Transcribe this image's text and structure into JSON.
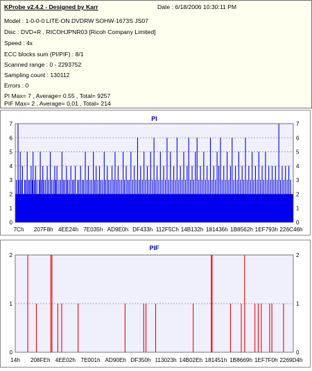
{
  "info": {
    "app_title": "KProbe v2.4.2 - Designed by Karr",
    "date": "Date : 6/18/2006 10:30:11 PM",
    "lines": [
      "Model : 1-0-0-0 LITE-ON DVDRW SOHW-1673S JS07",
      "Disc : DVD+R , RICOHJPNR03 [Ricoh Company Limited]",
      "Speed : 4x",
      "ECC blocks sum (PI/PIF) : 8/1",
      "Scanned range : 0 - 2293752",
      "Sampling count : 130112",
      "Errors : 0",
      "PI Max= 7 , Average= 0.55 , Total= 9257",
      "PIF Max= 2 , Average= 0.01 , Total= 214"
    ]
  },
  "colors": {
    "plot_bg": "#f0f0fc",
    "pi_bar": "#0000ee",
    "pif_bar": "#ee0000",
    "title": "#0000aa",
    "grid": "#8c8c8c"
  },
  "chart_data": [
    {
      "type": "bar",
      "title": "PI",
      "ylim": [
        0,
        7
      ],
      "y_ticks": [
        "0",
        "1",
        "2",
        "3",
        "4",
        "5",
        "6",
        "7"
      ],
      "x_tick_labels": [
        "7Ch",
        "207F8h",
        "4EE24h",
        "7E035h",
        "AD9E0h",
        "DF433h",
        "112F5Ch",
        "14B132h",
        "181436h",
        "1B8562h",
        "1EF793h",
        "226C46h"
      ],
      "baseline": 2,
      "points": [
        [
          0.4,
          3
        ],
        [
          1.0,
          7
        ],
        [
          1.3,
          3
        ],
        [
          1.8,
          5
        ],
        [
          2.2,
          3
        ],
        [
          2.6,
          4
        ],
        [
          3.4,
          3
        ],
        [
          3.8,
          3
        ],
        [
          4.3,
          5
        ],
        [
          4.8,
          3
        ],
        [
          5.2,
          3
        ],
        [
          5.7,
          4
        ],
        [
          6.1,
          3
        ],
        [
          6.4,
          5
        ],
        [
          6.9,
          3
        ],
        [
          7.3,
          4
        ],
        [
          7.8,
          3
        ],
        [
          8.6,
          3
        ],
        [
          9.0,
          5
        ],
        [
          9.4,
          3
        ],
        [
          9.9,
          4
        ],
        [
          10.3,
          3
        ],
        [
          10.9,
          3
        ],
        [
          11.5,
          4
        ],
        [
          12.0,
          3
        ],
        [
          12.6,
          5
        ],
        [
          13.1,
          3
        ],
        [
          13.7,
          3
        ],
        [
          14.2,
          4
        ],
        [
          14.6,
          3
        ],
        [
          15.0,
          4
        ],
        [
          15.7,
          3
        ],
        [
          16.3,
          3
        ],
        [
          16.8,
          5
        ],
        [
          17.3,
          3
        ],
        [
          17.8,
          3
        ],
        [
          18.4,
          4
        ],
        [
          18.8,
          3
        ],
        [
          19.4,
          3
        ],
        [
          20.0,
          4
        ],
        [
          20.6,
          3
        ],
        [
          21.1,
          3
        ],
        [
          21.6,
          4
        ],
        [
          22.4,
          3
        ],
        [
          22.9,
          3
        ],
        [
          23.5,
          4
        ],
        [
          24.1,
          3
        ],
        [
          24.6,
          3
        ],
        [
          25.2,
          5
        ],
        [
          25.8,
          3
        ],
        [
          26.3,
          4
        ],
        [
          26.9,
          3
        ],
        [
          27.5,
          3
        ],
        [
          28.1,
          5
        ],
        [
          28.6,
          3
        ],
        [
          29.1,
          4
        ],
        [
          29.7,
          3
        ],
        [
          30.3,
          4
        ],
        [
          30.8,
          3
        ],
        [
          31.4,
          3
        ],
        [
          32.0,
          5
        ],
        [
          32.5,
          3
        ],
        [
          33.1,
          4
        ],
        [
          33.6,
          3
        ],
        [
          34.2,
          3
        ],
        [
          34.8,
          4
        ],
        [
          35.4,
          3
        ],
        [
          35.9,
          5
        ],
        [
          36.5,
          3
        ],
        [
          37.0,
          4
        ],
        [
          37.6,
          3
        ],
        [
          38.2,
          3
        ],
        [
          38.8,
          5
        ],
        [
          39.3,
          3
        ],
        [
          39.9,
          4
        ],
        [
          40.5,
          3
        ],
        [
          41.0,
          3
        ],
        [
          41.6,
          5
        ],
        [
          42.2,
          3
        ],
        [
          42.8,
          4
        ],
        [
          43.4,
          3
        ],
        [
          44.0,
          6
        ],
        [
          44.6,
          3
        ],
        [
          45.1,
          4
        ],
        [
          45.7,
          3
        ],
        [
          46.3,
          5
        ],
        [
          46.9,
          3
        ],
        [
          47.5,
          4
        ],
        [
          48.1,
          3
        ],
        [
          48.7,
          5
        ],
        [
          49.3,
          3
        ],
        [
          49.9,
          6
        ],
        [
          50.4,
          3
        ],
        [
          51.0,
          4
        ],
        [
          51.6,
          3
        ],
        [
          52.2,
          5
        ],
        [
          52.8,
          3
        ],
        [
          53.4,
          4
        ],
        [
          54.0,
          3
        ],
        [
          54.6,
          6
        ],
        [
          55.2,
          3
        ],
        [
          55.8,
          5
        ],
        [
          56.4,
          3
        ],
        [
          57.0,
          4
        ],
        [
          57.6,
          3
        ],
        [
          58.2,
          6
        ],
        [
          58.8,
          3
        ],
        [
          59.4,
          4
        ],
        [
          60.0,
          3
        ],
        [
          60.6,
          5
        ],
        [
          61.2,
          3
        ],
        [
          61.8,
          4
        ],
        [
          62.4,
          6
        ],
        [
          63.0,
          3
        ],
        [
          63.6,
          4
        ],
        [
          64.2,
          3
        ],
        [
          64.8,
          5
        ],
        [
          65.4,
          6
        ],
        [
          66.0,
          3
        ],
        [
          66.6,
          4
        ],
        [
          67.2,
          3
        ],
        [
          67.8,
          5
        ],
        [
          68.4,
          3
        ],
        [
          69.0,
          4
        ],
        [
          69.6,
          3
        ],
        [
          70.2,
          6
        ],
        [
          70.8,
          3
        ],
        [
          71.4,
          4
        ],
        [
          72.0,
          3
        ],
        [
          72.6,
          5
        ],
        [
          73.2,
          4
        ],
        [
          73.8,
          6
        ],
        [
          74.4,
          3
        ],
        [
          75.0,
          4
        ],
        [
          75.6,
          3
        ],
        [
          76.2,
          5
        ],
        [
          76.8,
          3
        ],
        [
          77.4,
          4
        ],
        [
          78.0,
          6
        ],
        [
          78.6,
          3
        ],
        [
          79.2,
          4
        ],
        [
          79.8,
          3
        ],
        [
          80.4,
          5
        ],
        [
          81.0,
          3
        ],
        [
          81.6,
          4
        ],
        [
          82.2,
          3
        ],
        [
          82.8,
          6
        ],
        [
          83.4,
          3
        ],
        [
          84.0,
          4
        ],
        [
          84.6,
          3
        ],
        [
          85.2,
          5
        ],
        [
          85.8,
          3
        ],
        [
          86.4,
          4
        ],
        [
          87.0,
          3
        ],
        [
          87.6,
          5
        ],
        [
          88.2,
          3
        ],
        [
          88.8,
          4
        ],
        [
          89.4,
          3
        ],
        [
          90.0,
          5
        ],
        [
          90.6,
          3
        ],
        [
          91.2,
          4
        ],
        [
          91.8,
          3
        ],
        [
          92.4,
          4
        ],
        [
          93.0,
          3
        ],
        [
          93.6,
          4
        ],
        [
          94.2,
          3
        ],
        [
          94.8,
          7
        ],
        [
          95.4,
          3
        ],
        [
          96.0,
          4
        ],
        [
          96.6,
          3
        ],
        [
          97.2,
          4
        ],
        [
          97.8,
          3
        ],
        [
          98.4,
          4
        ],
        [
          99.0,
          3
        ]
      ]
    },
    {
      "type": "bar",
      "title": "PIF",
      "ylim": [
        0,
        2
      ],
      "y_ticks": [
        "0",
        "1",
        "2"
      ],
      "x_tick_labels": [
        "14h",
        "208FEh",
        "4EE02h",
        "7E001h",
        "AD90Eh",
        "DF350h",
        "113023h",
        "14B02Eh",
        "181451h",
        "1B8669h",
        "1EF7F0h",
        "2269D4h"
      ],
      "points": [
        [
          4.5,
          2
        ],
        [
          7.6,
          1
        ],
        [
          12.8,
          2
        ],
        [
          13.2,
          2
        ],
        [
          15.3,
          1
        ],
        [
          16.7,
          1
        ],
        [
          22.6,
          1
        ],
        [
          39.5,
          1
        ],
        [
          46.2,
          1
        ],
        [
          47.0,
          1
        ],
        [
          50.5,
          1
        ],
        [
          64.0,
          1
        ],
        [
          70.5,
          2
        ],
        [
          70.8,
          2
        ],
        [
          77.4,
          1
        ],
        [
          81.3,
          1
        ],
        [
          82.5,
          2
        ],
        [
          86.2,
          1
        ],
        [
          87.4,
          1
        ],
        [
          88.5,
          1
        ],
        [
          91.5,
          1
        ],
        [
          92.3,
          1
        ],
        [
          96.5,
          1
        ]
      ]
    }
  ]
}
